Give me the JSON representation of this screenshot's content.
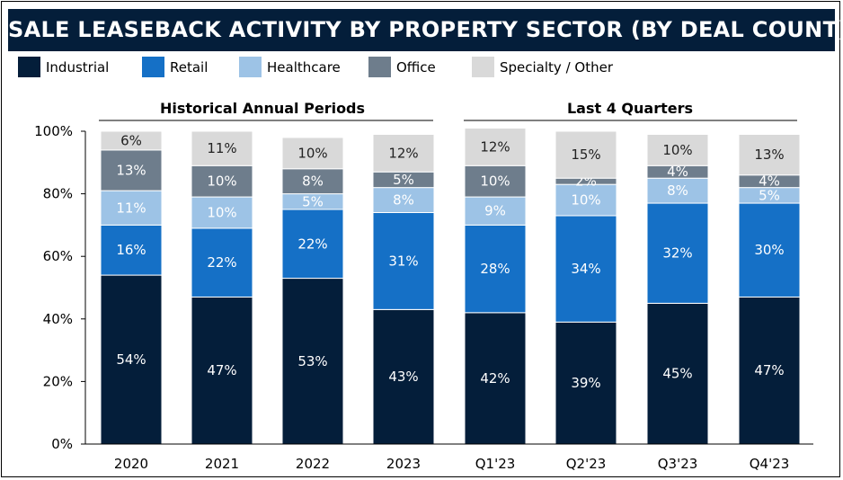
{
  "title": "SALE LEASEBACK ACTIVITY BY PROPERTY SECTOR (BY DEAL COUNT)",
  "colors": {
    "Industrial": "#041E3A",
    "Retail": "#1570C6",
    "Healthcare": "#9DC3E6",
    "Office": "#6E7D8C",
    "Specialty / Other": "#D9D9D9"
  },
  "chart_data": {
    "type": "bar",
    "stacked": true,
    "title": "SALE LEASEBACK ACTIVITY BY PROPERTY SECTOR (BY DEAL COUNT)",
    "ylim": [
      0,
      100
    ],
    "yticks": [
      "0%",
      "20%",
      "40%",
      "60%",
      "80%",
      "100%"
    ],
    "legend_position": "top",
    "groups": [
      {
        "label": "Historical Annual Periods",
        "categories": [
          "2020",
          "2021",
          "2022",
          "2023"
        ]
      },
      {
        "label": "Last 4 Quarters",
        "categories": [
          "Q1'23",
          "Q2'23",
          "Q3'23",
          "Q4'23"
        ]
      }
    ],
    "categories": [
      "2020",
      "2021",
      "2022",
      "2023",
      "Q1'23",
      "Q2'23",
      "Q3'23",
      "Q4'23"
    ],
    "series": [
      {
        "name": "Industrial",
        "values": [
          54,
          47,
          53,
          43,
          42,
          39,
          45,
          47
        ]
      },
      {
        "name": "Retail",
        "values": [
          16,
          22,
          22,
          31,
          28,
          34,
          32,
          30
        ]
      },
      {
        "name": "Healthcare",
        "values": [
          11,
          10,
          5,
          8,
          9,
          10,
          8,
          5
        ]
      },
      {
        "name": "Office",
        "values": [
          13,
          10,
          8,
          5,
          10,
          2,
          4,
          4
        ]
      },
      {
        "name": "Specialty / Other",
        "values": [
          6,
          11,
          10,
          12,
          12,
          15,
          10,
          13
        ]
      }
    ]
  }
}
